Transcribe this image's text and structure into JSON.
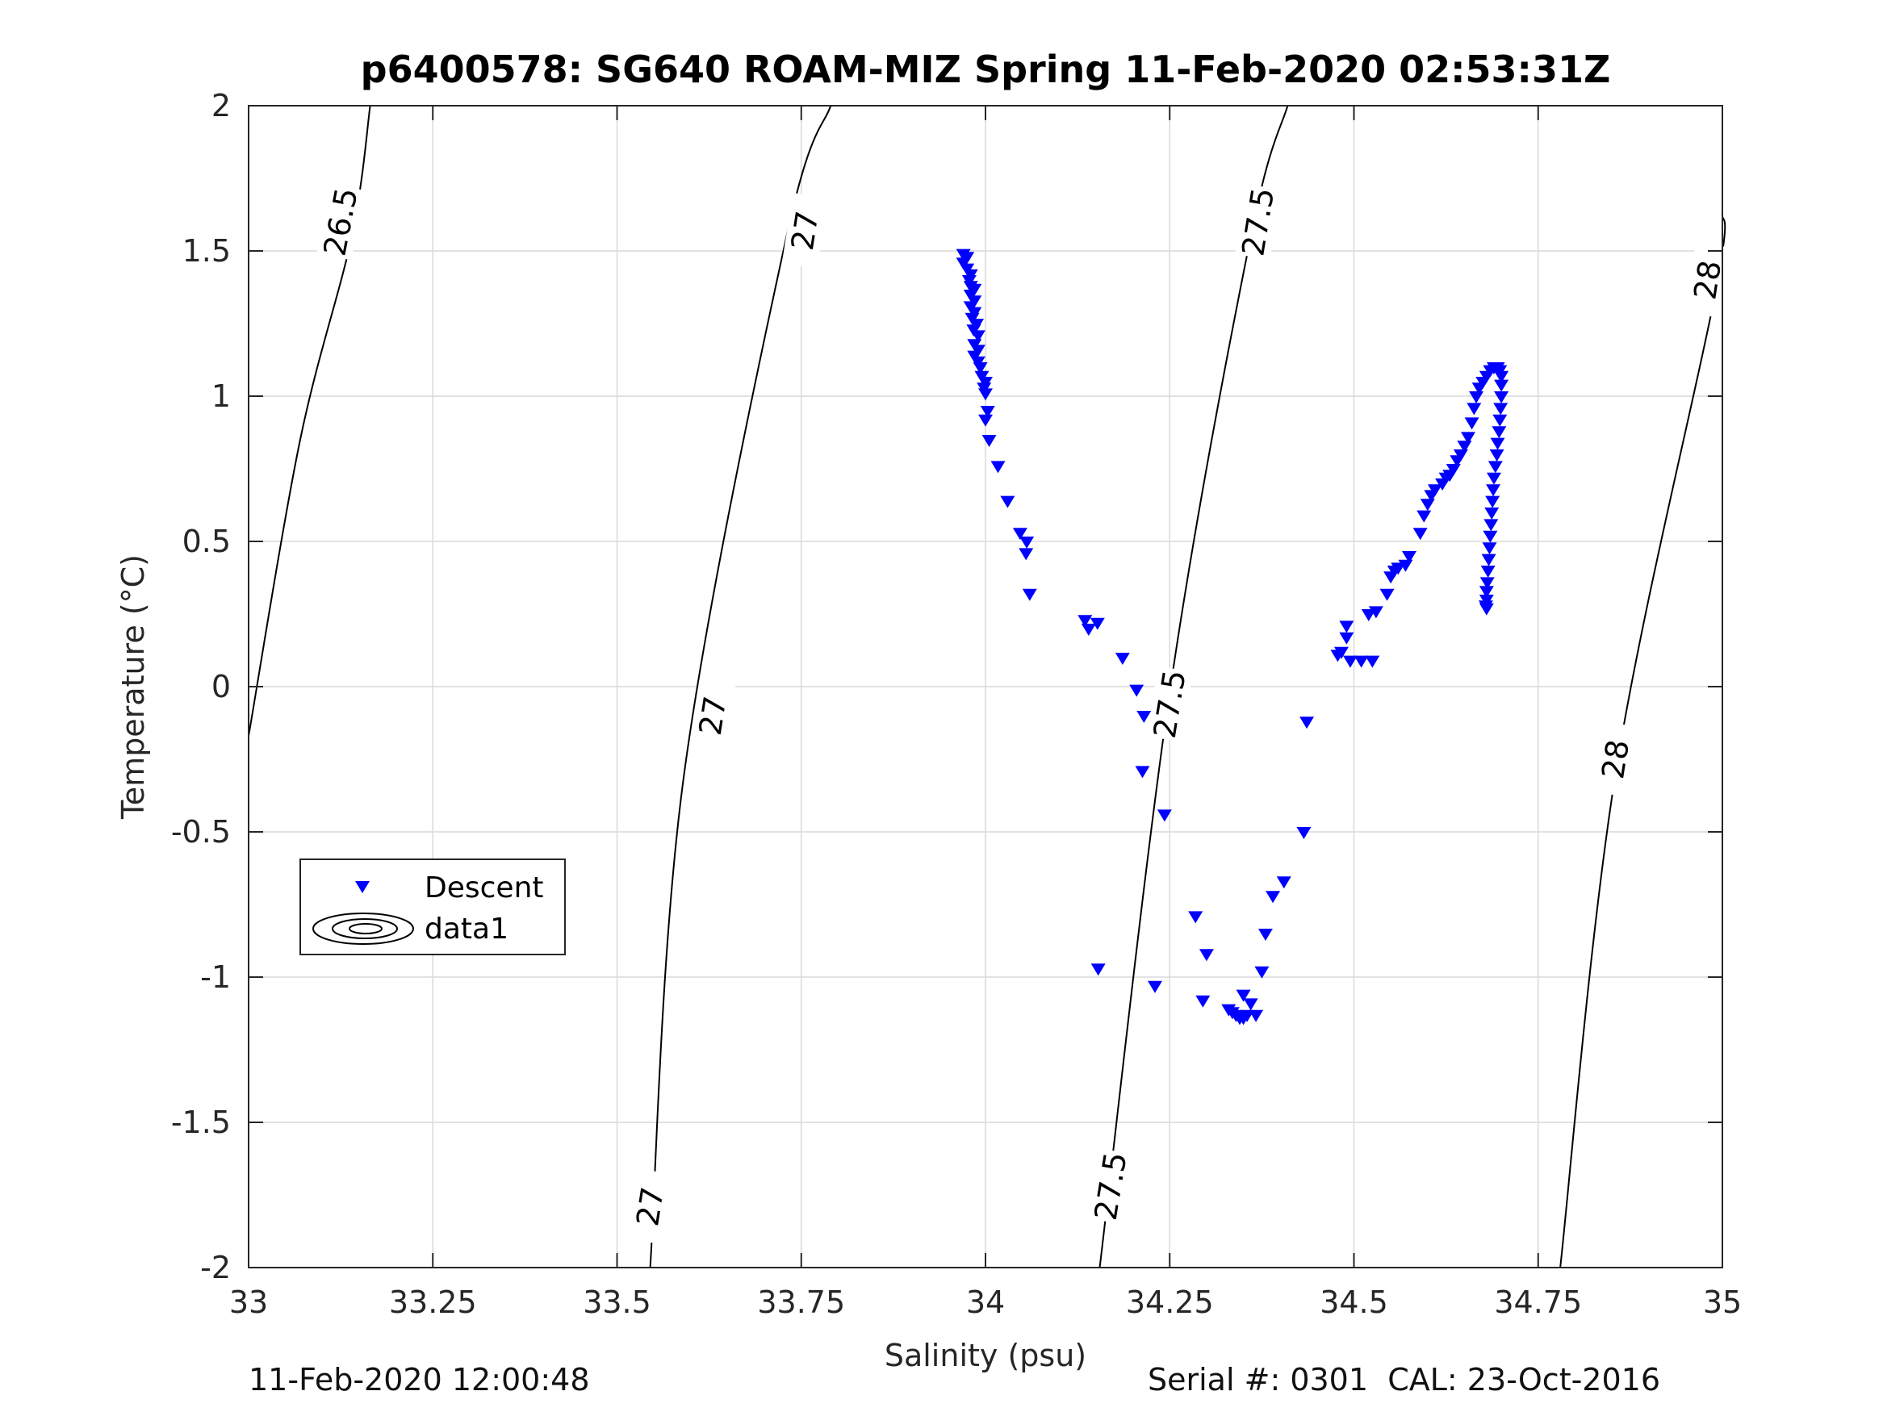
{
  "footer": {
    "left": "11-Feb-2020 12:00:48",
    "right": "Serial #: 0301  CAL: 23-Oct-2016"
  },
  "colors": {
    "descent": "#0000ff",
    "grid": "#d9d9d9",
    "axis": "#262626",
    "contour": "#000000"
  },
  "chart_data": {
    "type": "scatter",
    "title": "p6400578: SG640 ROAM-MIZ Spring 11-Feb-2020 02:53:31Z",
    "xlabel": "Salinity (psu)",
    "ylabel": "Temperature (°C)",
    "xlim": [
      33,
      35
    ],
    "ylim": [
      -2,
      2
    ],
    "xticks": [
      33,
      33.25,
      33.5,
      33.75,
      34,
      34.25,
      34.5,
      34.75,
      35
    ],
    "xtick_labels": [
      "33",
      "33.25",
      "33.5",
      "33.75",
      "34",
      "34.25",
      "34.5",
      "34.75",
      "35"
    ],
    "yticks": [
      -2,
      -1.5,
      -1,
      -0.5,
      0,
      0.5,
      1,
      1.5,
      2
    ],
    "ytick_labels": [
      "-2",
      "-1.5",
      "-1",
      "-0.5",
      "0",
      "0.5",
      "1",
      "1.5",
      "2"
    ],
    "grid": true,
    "legend": {
      "position": "lower-left",
      "entries": [
        {
          "label": "Descent",
          "marker": "triangle-down",
          "color": "#0000ff"
        },
        {
          "label": "data1",
          "marker": "contour"
        }
      ]
    },
    "contours": [
      {
        "level": "26.5",
        "points": [
          [
            33.0,
            -0.17
          ],
          [
            33.07,
            0.85
          ],
          [
            33.14,
            1.55
          ],
          [
            33.165,
            2.0
          ]
        ],
        "labels": [
          {
            "x": 33.125,
            "y": 1.6
          }
        ]
      },
      {
        "level": "27",
        "points": [
          [
            33.545,
            -2.0
          ],
          [
            33.59,
            -0.32
          ],
          [
            33.73,
            1.55
          ],
          [
            33.79,
            2.0
          ]
        ],
        "labels": [
          {
            "x": 33.545,
            "y": -1.79
          },
          {
            "x": 33.63,
            "y": -0.1
          },
          {
            "x": 33.755,
            "y": 1.57
          }
        ]
      },
      {
        "level": "27.5",
        "points": [
          [
            34.155,
            -2.0
          ],
          [
            34.25,
            -0.02
          ],
          [
            34.36,
            1.55
          ],
          [
            34.41,
            2.0
          ]
        ],
        "labels": [
          {
            "x": 34.17,
            "y": -1.72
          },
          {
            "x": 34.25,
            "y": -0.06
          },
          {
            "x": 34.37,
            "y": 1.6
          }
        ]
      },
      {
        "level": "28",
        "points": [
          [
            34.78,
            -2.0
          ],
          [
            34.855,
            -0.3
          ],
          [
            34.99,
            1.35
          ],
          [
            35.0,
            1.63
          ]
        ],
        "labels": [
          {
            "x": 34.855,
            "y": -0.25
          },
          {
            "x": 34.98,
            "y": 1.4
          }
        ]
      }
    ],
    "series": [
      {
        "name": "Descent",
        "marker": "triangle-down",
        "color": "#0000ff",
        "points": [
          [
            33.97,
            1.49
          ],
          [
            33.975,
            1.48
          ],
          [
            33.97,
            1.46
          ],
          [
            33.975,
            1.44
          ],
          [
            33.98,
            1.42
          ],
          [
            33.978,
            1.4
          ],
          [
            33.98,
            1.38
          ],
          [
            33.985,
            1.37
          ],
          [
            33.98,
            1.35
          ],
          [
            33.985,
            1.33
          ],
          [
            33.98,
            1.31
          ],
          [
            33.985,
            1.29
          ],
          [
            33.982,
            1.27
          ],
          [
            33.988,
            1.25
          ],
          [
            33.984,
            1.23
          ],
          [
            33.99,
            1.21
          ],
          [
            33.985,
            1.18
          ],
          [
            33.99,
            1.16
          ],
          [
            33.985,
            1.14
          ],
          [
            33.99,
            1.12
          ],
          [
            33.993,
            1.1
          ],
          [
            33.995,
            1.07
          ],
          [
            34.0,
            1.05
          ],
          [
            33.998,
            1.03
          ],
          [
            34.0,
            1.01
          ],
          [
            34.003,
            0.95
          ],
          [
            34.0,
            0.92
          ],
          [
            34.005,
            0.85
          ],
          [
            34.017,
            0.76
          ],
          [
            34.03,
            0.64
          ],
          [
            34.047,
            0.53
          ],
          [
            34.056,
            0.5
          ],
          [
            34.055,
            0.46
          ],
          [
            34.06,
            0.32
          ],
          [
            34.135,
            0.23
          ],
          [
            34.14,
            0.2
          ],
          [
            34.152,
            0.22
          ],
          [
            34.186,
            0.1
          ],
          [
            34.205,
            -0.01
          ],
          [
            34.215,
            -0.1
          ],
          [
            34.213,
            -0.29
          ],
          [
            34.243,
            -0.44
          ],
          [
            34.153,
            -0.97
          ],
          [
            34.23,
            -1.03
          ],
          [
            34.285,
            -0.79
          ],
          [
            34.3,
            -0.92
          ],
          [
            34.295,
            -1.08
          ],
          [
            34.33,
            -1.11
          ],
          [
            34.335,
            -1.12
          ],
          [
            34.34,
            -1.13
          ],
          [
            34.345,
            -1.14
          ],
          [
            34.35,
            -1.14
          ],
          [
            34.355,
            -1.13
          ],
          [
            34.35,
            -1.06
          ],
          [
            34.36,
            -1.09
          ],
          [
            34.367,
            -1.13
          ],
          [
            34.375,
            -0.98
          ],
          [
            34.38,
            -0.85
          ],
          [
            34.39,
            -0.72
          ],
          [
            34.405,
            -0.67
          ],
          [
            34.432,
            -0.5
          ],
          [
            34.436,
            -0.12
          ],
          [
            34.478,
            0.11
          ],
          [
            34.483,
            0.12
          ],
          [
            34.49,
            0.21
          ],
          [
            34.49,
            0.17
          ],
          [
            34.495,
            0.09
          ],
          [
            34.51,
            0.09
          ],
          [
            34.525,
            0.09
          ],
          [
            34.52,
            0.25
          ],
          [
            34.53,
            0.26
          ],
          [
            34.545,
            0.32
          ],
          [
            34.55,
            0.38
          ],
          [
            34.555,
            0.4
          ],
          [
            34.56,
            0.41
          ],
          [
            34.57,
            0.42
          ],
          [
            34.575,
            0.45
          ],
          [
            34.59,
            0.53
          ],
          [
            34.595,
            0.59
          ],
          [
            34.6,
            0.63
          ],
          [
            34.605,
            0.66
          ],
          [
            34.61,
            0.68
          ],
          [
            34.62,
            0.7
          ],
          [
            34.625,
            0.72
          ],
          [
            34.63,
            0.73
          ],
          [
            34.635,
            0.75
          ],
          [
            34.64,
            0.78
          ],
          [
            34.645,
            0.8
          ],
          [
            34.65,
            0.83
          ],
          [
            34.655,
            0.86
          ],
          [
            34.66,
            0.91
          ],
          [
            34.663,
            0.96
          ],
          [
            34.666,
            1.0
          ],
          [
            34.67,
            1.03
          ],
          [
            34.675,
            1.05
          ],
          [
            34.68,
            1.07
          ],
          [
            34.685,
            1.09
          ],
          [
            34.69,
            1.1
          ],
          [
            34.695,
            1.1
          ],
          [
            34.698,
            1.09
          ],
          [
            34.7,
            1.07
          ],
          [
            34.7,
            1.04
          ],
          [
            34.7,
            1.0
          ],
          [
            34.699,
            0.96
          ],
          [
            34.698,
            0.92
          ],
          [
            34.697,
            0.88
          ],
          [
            34.695,
            0.84
          ],
          [
            34.694,
            0.8
          ],
          [
            34.692,
            0.76
          ],
          [
            34.69,
            0.72
          ],
          [
            34.689,
            0.68
          ],
          [
            34.688,
            0.64
          ],
          [
            34.687,
            0.6
          ],
          [
            34.686,
            0.56
          ],
          [
            34.685,
            0.52
          ],
          [
            34.684,
            0.48
          ],
          [
            34.683,
            0.44
          ],
          [
            34.682,
            0.4
          ],
          [
            34.681,
            0.36
          ],
          [
            34.68,
            0.33
          ],
          [
            34.68,
            0.3
          ],
          [
            34.679,
            0.28
          ],
          [
            34.68,
            0.27
          ]
        ]
      }
    ]
  }
}
